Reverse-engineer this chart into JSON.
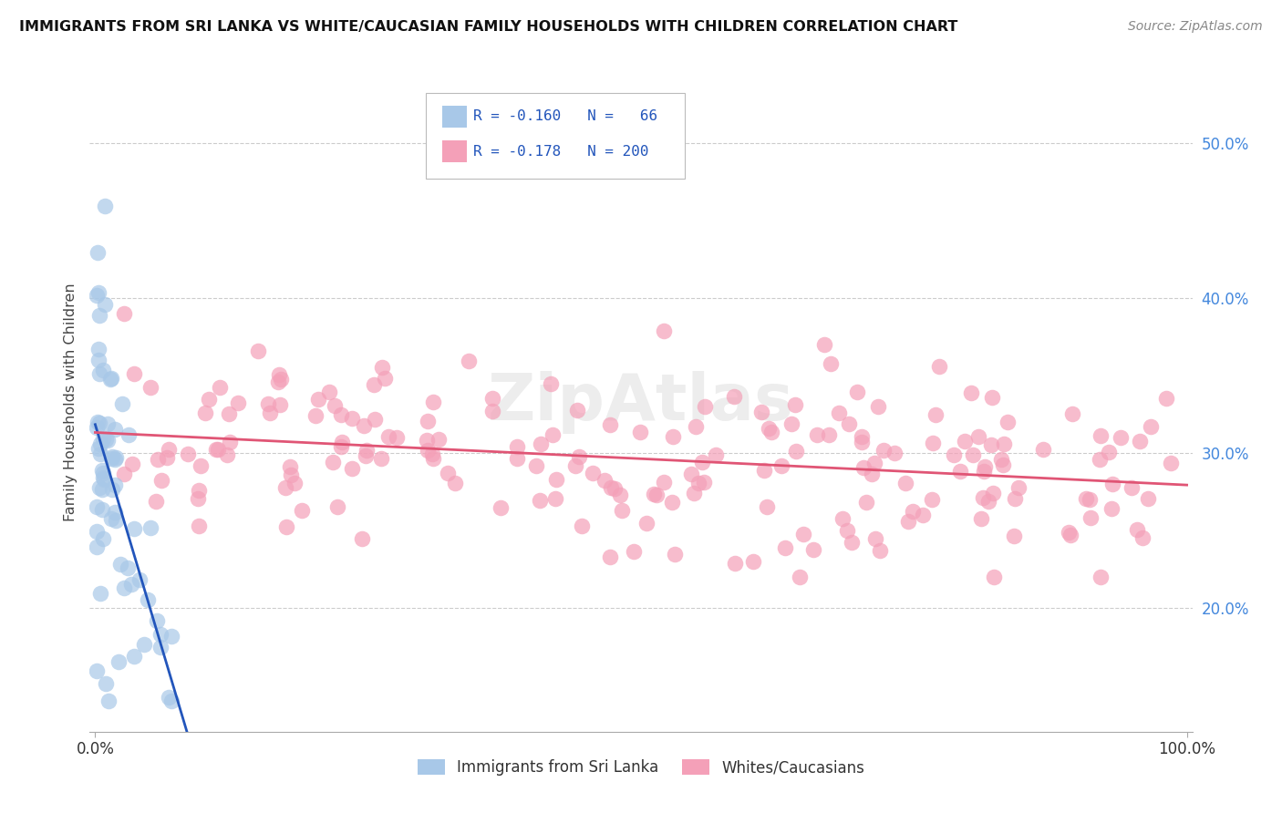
{
  "title": "IMMIGRANTS FROM SRI LANKA VS WHITE/CAUCASIAN FAMILY HOUSEHOLDS WITH CHILDREN CORRELATION CHART",
  "source": "Source: ZipAtlas.com",
  "ylabel": "Family Households with Children",
  "legend_r1": "R = -0.160",
  "legend_n1": "N =  66",
  "legend_r2": "R = -0.178",
  "legend_n2": "N = 200",
  "legend_label1": "Immigrants from Sri Lanka",
  "legend_label2": "Whites/Caucasians",
  "blue_scatter_color": "#A8C8E8",
  "pink_scatter_color": "#F4A0B8",
  "blue_line_color": "#2255BB",
  "pink_line_color": "#E05575",
  "watermark": "ZipAtlas",
  "title_color": "#111111",
  "source_color": "#888888",
  "ytick_color": "#4488DD",
  "ylabel_color": "#444444",
  "grid_color": "#CCCCCC",
  "legend_text_color": "#2255BB",
  "blue_seed": 42,
  "pink_seed": 99,
  "xlim": [
    -0.005,
    1.005
  ],
  "ylim": [
    0.12,
    0.545
  ]
}
